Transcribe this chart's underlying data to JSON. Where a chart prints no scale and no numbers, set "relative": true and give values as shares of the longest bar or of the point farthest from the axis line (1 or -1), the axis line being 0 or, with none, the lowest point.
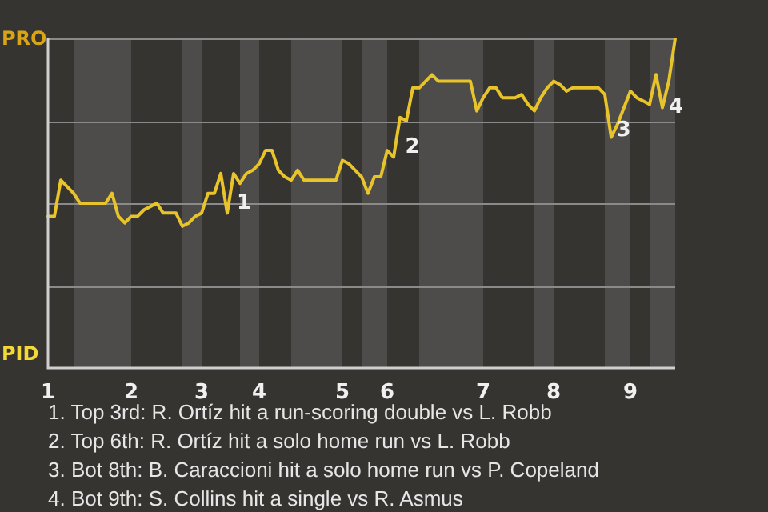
{
  "chart_data": {
    "type": "line",
    "relative": true,
    "categories": [
      "1",
      null,
      null,
      null,
      null,
      null,
      null,
      null,
      null,
      null,
      null,
      null,
      null,
      "2",
      null,
      null,
      null,
      null,
      null,
      null,
      null,
      null,
      null,
      null,
      "3",
      null,
      null,
      null,
      null,
      null,
      null,
      null,
      null,
      "4",
      null,
      null,
      null,
      null,
      null,
      null,
      null,
      null,
      null,
      null,
      null,
      null,
      "5",
      null,
      null,
      null,
      null,
      null,
      null,
      "6",
      null,
      null,
      null,
      null,
      null,
      null,
      null,
      null,
      null,
      null,
      null,
      null,
      null,
      null,
      "7",
      null,
      null,
      null,
      null,
      null,
      null,
      null,
      null,
      null,
      null,
      "8",
      null,
      null,
      null,
      null,
      null,
      null,
      null,
      null,
      null,
      null,
      null,
      "9",
      null,
      null,
      null,
      null,
      null,
      null,
      null
    ],
    "series": [
      {
        "color": "#e8c42a",
        "values": [
          0.46,
          0.46,
          0.57,
          0.55,
          0.53,
          0.5,
          0.5,
          0.5,
          0.5,
          0.5,
          0.53,
          0.46,
          0.44,
          0.46,
          0.46,
          0.48,
          0.49,
          0.5,
          0.47,
          0.47,
          0.47,
          0.43,
          0.44,
          0.46,
          0.47,
          0.53,
          0.53,
          0.59,
          0.47,
          0.59,
          0.56,
          0.59,
          0.6,
          0.62,
          0.66,
          0.66,
          0.6,
          0.58,
          0.57,
          0.6,
          0.57,
          0.57,
          0.57,
          0.57,
          0.57,
          0.57,
          0.63,
          0.62,
          0.6,
          0.58,
          0.53,
          0.58,
          0.58,
          0.66,
          0.64,
          0.76,
          0.75,
          0.85,
          0.85,
          0.87,
          0.89,
          0.87,
          0.87,
          0.87,
          0.87,
          0.87,
          0.87,
          0.78,
          0.82,
          0.85,
          0.85,
          0.82,
          0.82,
          0.82,
          0.83,
          0.8,
          0.78,
          0.82,
          0.85,
          0.87,
          0.86,
          0.84,
          0.85,
          0.85,
          0.85,
          0.85,
          0.85,
          0.83,
          0.7,
          0.74,
          0.79,
          0.84,
          0.82,
          0.81,
          0.8,
          0.89,
          0.79,
          0.87,
          1
        ]
      }
    ],
    "legend": false,
    "marker": "none",
    "line_style": "solid",
    "ref_lines": [
      {
        "axis": "y",
        "value": 1,
        "color": "#8a8a8a"
      },
      {
        "axis": "y",
        "value": 0.75,
        "color": "#8a8a8a"
      },
      {
        "axis": "y",
        "value": 0.5,
        "color": "#8a8a8a"
      },
      {
        "axis": "y",
        "value": 0.25,
        "color": "#8a8a8a"
      }
    ],
    "annotations": [
      "PRO",
      "PID",
      "1. Top 3rd: R. Ortíz hit a run-scoring double vs L. Robb",
      "2. Top 6th: R. Ortíz hit a solo home run vs L. Robb",
      "3. Bot 8th: B. Caraccioni hit a solo home run vs P. Copeland",
      "4. Bot 9th: S. Collins hit a single vs R. Asmus",
      "1",
      "2",
      "3",
      "4"
    ]
  }
}
